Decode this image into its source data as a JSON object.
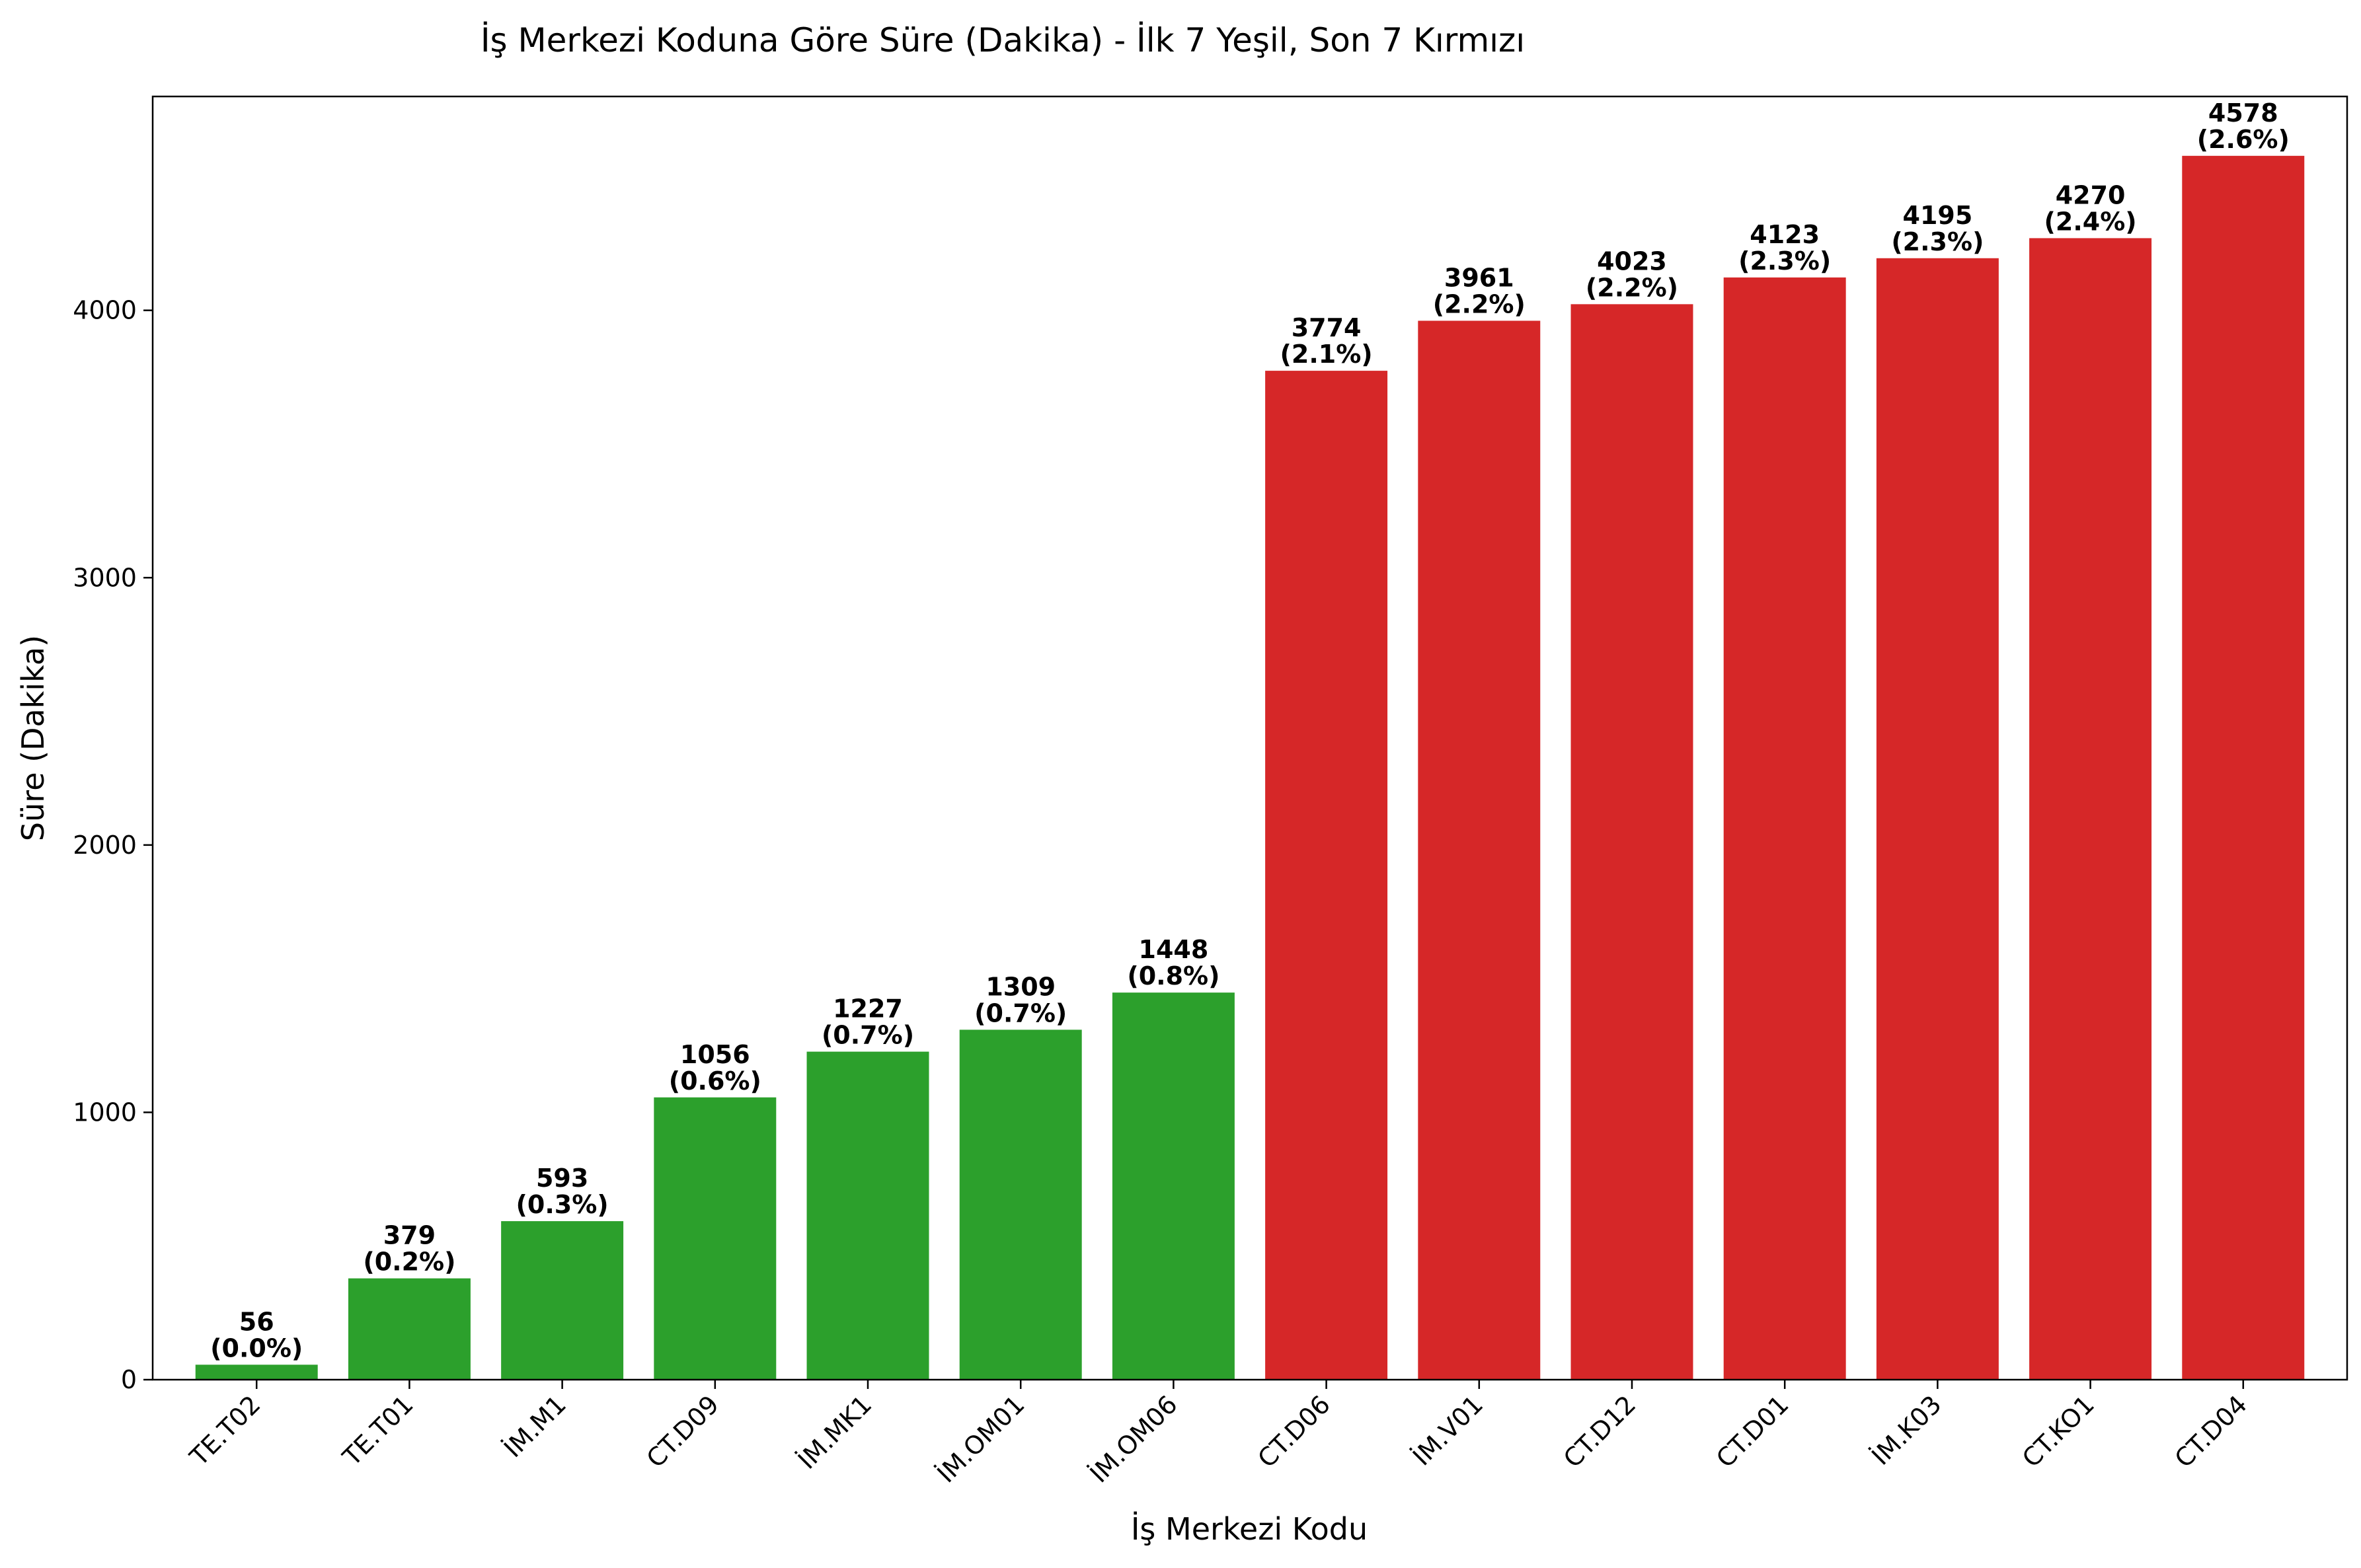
{
  "chart_data": {
    "type": "bar",
    "title": "İş Merkezi Koduna Göre Süre (Dakika) - İlk 7 Yeşil, Son 7 Kırmızı",
    "xlabel": "İş Merkezi Kodu",
    "ylabel": "Süre (Dakika)",
    "ylim": [
      0,
      4800
    ],
    "yticks": [
      0,
      1000,
      2000,
      3000,
      4000
    ],
    "grid": false,
    "categories": [
      "TE.T02",
      "TE.T01",
      "İM.M1",
      "CT.D09",
      "İM.MK1",
      "İM.OM01",
      "İM.OM06",
      "CT.D06",
      "İM.V01",
      "CT.D12",
      "CT.D01",
      "İM.K03",
      "CT.KO1",
      "CT.D04"
    ],
    "values": [
      56,
      379,
      593,
      1056,
      1227,
      1309,
      1448,
      3774,
      3961,
      4023,
      4123,
      4195,
      4270,
      4578
    ],
    "percent_labels": [
      "(0.0%)",
      "(0.2%)",
      "(0.3%)",
      "(0.6%)",
      "(0.7%)",
      "(0.7%)",
      "(0.8%)",
      "(2.1%)",
      "(2.2%)",
      "(2.2%)",
      "(2.3%)",
      "(2.3%)",
      "(2.4%)",
      "(2.6%)"
    ],
    "colors": {
      "first_7": "#2ca02c",
      "last_7": "#d62728"
    }
  }
}
